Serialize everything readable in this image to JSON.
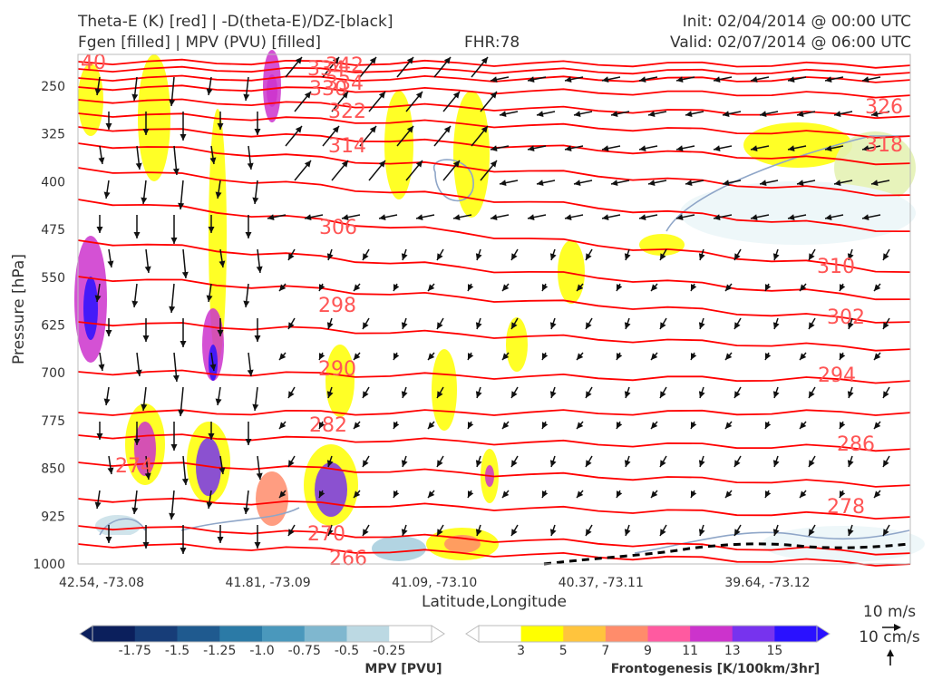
{
  "header": {
    "left_line1": "Theta-E (K) [red] | -D(theta-E)/DZ-[black]",
    "left_line2": "Fgen [filled] | MPV (PVU) [filled]",
    "fhr": "FHR:78",
    "init": "Init: 02/04/2014 @ 00:00 UTC",
    "valid": "Valid: 02/07/2014 @ 06:00 UTC"
  },
  "chart_data": {
    "type": "cross-section",
    "ylabel": "Pressure [hPa]",
    "xlabel": "Latitude,Longitude",
    "yticks": [
      "250",
      "325",
      "400",
      "475",
      "550",
      "625",
      "700",
      "775",
      "850",
      "925",
      "1000"
    ],
    "xticks": [
      "42.54, -73.08",
      "41.81, -73.09",
      "41.09, -73.10",
      "40.37, -73.11",
      "39.64, -73.12"
    ],
    "contour_labels": [
      {
        "label": "40"
      },
      {
        "label": "334"
      },
      {
        "label": "342"
      },
      {
        "label": "334"
      },
      {
        "label": "330"
      },
      {
        "label": "322"
      },
      {
        "label": "314"
      },
      {
        "label": "306"
      },
      {
        "label": "298"
      },
      {
        "label": "290"
      },
      {
        "label": "282"
      },
      {
        "label": "274"
      },
      {
        "label": "270"
      },
      {
        "label": "266"
      },
      {
        "label": "326"
      },
      {
        "label": "318"
      },
      {
        "label": "310"
      },
      {
        "label": "302"
      },
      {
        "label": "294"
      },
      {
        "label": "286"
      },
      {
        "label": "278"
      }
    ],
    "mpv_colorbar": {
      "label": "MPV [PVU]",
      "ticks": [
        "-1.75",
        "-1.5",
        "-1.25",
        "-1.0",
        "-0.75",
        "-0.5",
        "-0.25"
      ],
      "colors": [
        "#0b1f5c",
        "#173d78",
        "#1f5a8f",
        "#2b7aa6",
        "#4a98bc",
        "#7fb7cf",
        "#bcd9e3",
        "#ffffff"
      ]
    },
    "fgen_colorbar": {
      "label": "Frontogenesis [K/100km/3hr]",
      "ticks": [
        "3",
        "5",
        "7",
        "9",
        "11",
        "13",
        "15"
      ],
      "colors": [
        "#ffffff",
        "#ffff00",
        "#ffc43d",
        "#ff8c6b",
        "#ff5aa0",
        "#cc33cc",
        "#7733ee",
        "#2a11ff"
      ]
    },
    "wind_key": {
      "upper": "10 m/s",
      "lower": "10 cm/s"
    },
    "colors": {
      "theta_e": "#ff0000",
      "label": "#ff5555",
      "vector": "#111111",
      "zero_contour": "#000000"
    }
  }
}
